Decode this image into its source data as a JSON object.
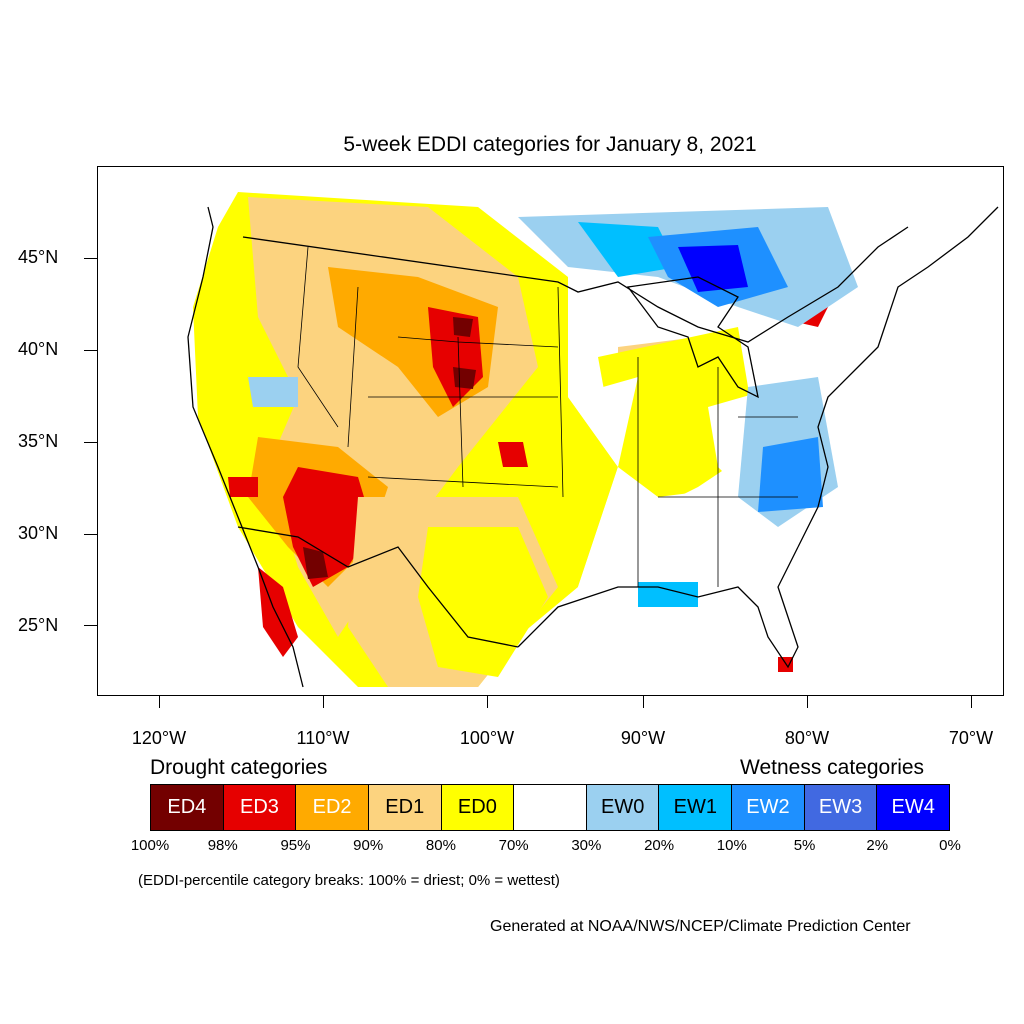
{
  "title": "5-week EDDI categories for January 8, 2021",
  "axes": {
    "lat_ticks": [
      {
        "label": "45°N",
        "value": 45
      },
      {
        "label": "40°N",
        "value": 40
      },
      {
        "label": "35°N",
        "value": 35
      },
      {
        "label": "30°N",
        "value": 30
      },
      {
        "label": "25°N",
        "value": 25
      }
    ],
    "lon_ticks": [
      {
        "label": "120°W",
        "value": -120
      },
      {
        "label": "110°W",
        "value": -110
      },
      {
        "label": "100°W",
        "value": -100
      },
      {
        "label": "90°W",
        "value": -90
      },
      {
        "label": "80°W",
        "value": -80
      },
      {
        "label": "70°W",
        "value": -70
      }
    ]
  },
  "legend": {
    "drought_heading": "Drought categories",
    "wetness_heading": "Wetness categories",
    "categories": [
      {
        "label": "ED4",
        "color": "#730000",
        "text_color": "#ffffff"
      },
      {
        "label": "ED3",
        "color": "#e60000",
        "text_color": "#ffffff"
      },
      {
        "label": "ED2",
        "color": "#ffaa00",
        "text_color": "#ffffff"
      },
      {
        "label": "ED1",
        "color": "#fcd37f",
        "text_color": "#000000"
      },
      {
        "label": "ED0",
        "color": "#ffff00",
        "text_color": "#000000"
      },
      {
        "label": "",
        "color": "#ffffff",
        "text_color": "#000000"
      },
      {
        "label": "EW0",
        "color": "#9bd0f0",
        "text_color": "#000000"
      },
      {
        "label": "EW1",
        "color": "#00bfff",
        "text_color": "#000000"
      },
      {
        "label": "EW2",
        "color": "#1e90ff",
        "text_color": "#ffffff"
      },
      {
        "label": "EW3",
        "color": "#4169e1",
        "text_color": "#ffffff"
      },
      {
        "label": "EW4",
        "color": "#0000ff",
        "text_color": "#ffffff"
      }
    ],
    "percent_breaks": [
      "100%",
      "98%",
      "95%",
      "90%",
      "80%",
      "70%",
      "30%",
      "20%",
      "10%",
      "5%",
      "2%",
      "0%"
    ]
  },
  "note": "(EDDI-percentile category breaks: 100% = driest; 0% = wettest)",
  "credit": "Generated at NOAA/NWS/NCEP/Climate Prediction Center"
}
